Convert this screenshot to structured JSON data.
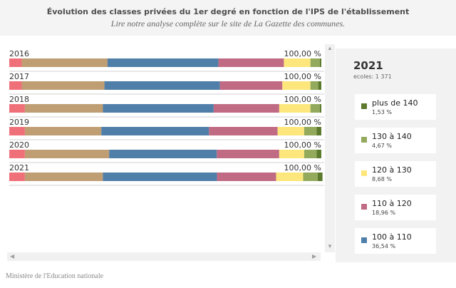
{
  "title": "Évolution des classes privées du 1er degré en fonction de l'IPS de l'établissement",
  "subtitle": "Lire notre analyse complète sur le site de La Gazette des communes.",
  "source": "Ministère de l'Education nationale",
  "panel": {
    "year": "2021",
    "schools": "ecoles: 1 371",
    "items": [
      {
        "name": "plus de 140",
        "value": "1,53 %",
        "color": "#5c7a2e"
      },
      {
        "name": "130 à 140",
        "value": "4,67 %",
        "color": "#93aa5c"
      },
      {
        "name": "120 à 130",
        "value": "8,68 %",
        "color": "#fde77c"
      },
      {
        "name": "110 à 120",
        "value": "18,96 %",
        "color": "#c06a84"
      },
      {
        "name": "100 à 110",
        "value": "36,54 %",
        "color": "#4f7fa9"
      }
    ]
  },
  "chart_data": {
    "type": "bar",
    "orientation": "horizontal",
    "stacked": true,
    "categories": [
      "2016",
      "2017",
      "2018",
      "2019",
      "2020",
      "2021"
    ],
    "totals": [
      "100,00 %",
      "100,00 %",
      "100,00 %",
      "100,00 %",
      "100,00 %",
      "100,00 %"
    ],
    "series": [
      {
        "color": "#f0707a",
        "values": [
          4.0,
          4.0,
          5.0,
          5.0,
          5.0,
          5.0
        ]
      },
      {
        "color": "#bf9e74",
        "values": [
          27.5,
          26.5,
          25.0,
          24.5,
          27.0,
          25.0
        ]
      },
      {
        "color": "#4f7fa9",
        "values": [
          35.5,
          37.0,
          35.5,
          34.5,
          34.5,
          36.54
        ]
      },
      {
        "name": "110 à 120",
        "color": "#c06a84",
        "values": [
          21.0,
          20.0,
          21.0,
          22.0,
          20.0,
          18.96
        ]
      },
      {
        "name": "120 à 130",
        "color": "#fde77c",
        "values": [
          8.5,
          9.0,
          10.0,
          8.5,
          8.0,
          8.68
        ]
      },
      {
        "name": "130 à 140",
        "color": "#93aa5c",
        "values": [
          3.0,
          2.5,
          3.0,
          4.0,
          4.0,
          4.67
        ]
      },
      {
        "name": "plus de 140",
        "color": "#5c7a2e",
        "values": [
          0.5,
          1.0,
          0.5,
          1.5,
          1.5,
          1.53
        ]
      }
    ],
    "xlim": [
      0,
      100
    ]
  }
}
